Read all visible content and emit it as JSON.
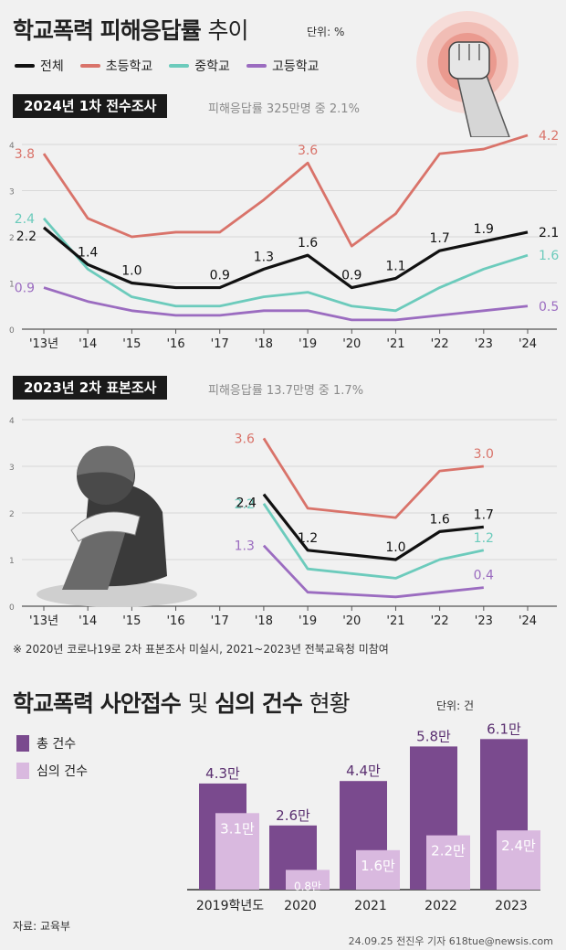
{
  "header": {
    "title_bold": "학교폭력 피해응답률",
    "title_light": "추이",
    "unit": "단위: %"
  },
  "legend": [
    {
      "name": "전체",
      "color": "#111111"
    },
    {
      "name": "초등학교",
      "color": "#d9736a"
    },
    {
      "name": "중학교",
      "color": "#6ccbbc"
    },
    {
      "name": "고등학교",
      "color": "#9b6cc0"
    }
  ],
  "survey1": {
    "band": "2024년 1차 전수조사",
    "note": "피해응답률 325만명 중 2.1%"
  },
  "survey2": {
    "band": "2023년 2차 표본조사",
    "note": "피해응답률 13.7만명 중 1.7%"
  },
  "footnote": "※ 2020년 코로나19로 2차 표본조사 미실시, 2021~2023년 전북교육청 미참여",
  "section2": {
    "title_bold": "학교폭력 사안접수",
    "title_mid": "및",
    "title_bold2": "심의 건수",
    "title_light": "현황",
    "unit": "단위: 건"
  },
  "bar_legend": [
    {
      "name": "총 건수",
      "color": "#7a4a8e"
    },
    {
      "name": "심의 건수",
      "color": "#d9b9df"
    }
  ],
  "source": "자료: 교육부",
  "byline": "24.09.25 전진우 기자 618tue@newsis.com",
  "chart_data": [
    {
      "type": "line",
      "x": [
        "'13년",
        "'14",
        "'15",
        "'16",
        "'17",
        "'18",
        "'19",
        "'20",
        "'21",
        "'22",
        "'23",
        "'24"
      ],
      "ylim": [
        0,
        4
      ],
      "yticks": [
        "0",
        "1",
        "2",
        "3",
        "4"
      ],
      "grid": true,
      "series": [
        {
          "name": "초등학교",
          "color": "#d9736a",
          "values": [
            3.8,
            2.4,
            2.0,
            2.1,
            2.1,
            2.8,
            3.6,
            1.8,
            2.5,
            3.8,
            3.9,
            4.2
          ],
          "labels": {
            "0": "3.8",
            "6": "3.6",
            "11": "4.2"
          }
        },
        {
          "name": "중학교",
          "color": "#6ccbbc",
          "values": [
            2.4,
            1.3,
            0.7,
            0.5,
            0.5,
            0.7,
            0.8,
            0.5,
            0.4,
            0.9,
            1.3,
            1.6
          ],
          "labels": {
            "0": "2.4",
            "11": "1.6"
          }
        },
        {
          "name": "고등학교",
          "color": "#9b6cc0",
          "values": [
            0.9,
            0.6,
            0.4,
            0.3,
            0.3,
            0.4,
            0.4,
            0.2,
            0.2,
            0.3,
            0.4,
            0.5
          ],
          "labels": {
            "0": "0.9",
            "11": "0.5"
          }
        },
        {
          "name": "전체",
          "color": "#111111",
          "values": [
            2.2,
            1.4,
            1.0,
            0.9,
            0.9,
            1.3,
            1.6,
            0.9,
            1.1,
            1.7,
            1.9,
            2.1
          ],
          "labels": {
            "0": "2.2",
            "1": "1.4",
            "2": "1.0",
            "4": "0.9",
            "5": "1.3",
            "6": "1.6",
            "7": "0.9",
            "8": "1.1",
            "9": "1.7",
            "10": "1.9",
            "11": "2.1"
          }
        }
      ]
    },
    {
      "type": "line",
      "x": [
        "'13년",
        "'14",
        "'15",
        "'16",
        "'17",
        "'18",
        "'19",
        "'20",
        "'21",
        "'22",
        "'23",
        "'24"
      ],
      "ylim": [
        0,
        4
      ],
      "yticks": [
        "0",
        "1",
        "2",
        "3",
        "4"
      ],
      "grid": true,
      "series": [
        {
          "name": "초등학교",
          "color": "#d9736a",
          "values": [
            null,
            null,
            null,
            null,
            null,
            3.6,
            2.1,
            2.0,
            1.9,
            2.9,
            3.0,
            null
          ],
          "labels": {
            "5": "3.6",
            "10": "3.0"
          }
        },
        {
          "name": "중학교",
          "color": "#6ccbbc",
          "values": [
            null,
            null,
            null,
            null,
            null,
            2.2,
            0.8,
            0.7,
            0.6,
            1.0,
            1.2,
            null
          ],
          "labels": {
            "5": "2.2",
            "10": "1.2"
          }
        },
        {
          "name": "고등학교",
          "color": "#9b6cc0",
          "values": [
            null,
            null,
            null,
            null,
            null,
            1.3,
            0.3,
            0.25,
            0.2,
            0.3,
            0.4,
            null
          ],
          "labels": {
            "5": "1.3",
            "10": "0.4"
          }
        },
        {
          "name": "전체",
          "color": "#111111",
          "values": [
            null,
            null,
            null,
            null,
            null,
            2.4,
            1.2,
            1.1,
            1.0,
            1.6,
            1.7,
            null
          ],
          "labels": {
            "5": "2.4",
            "6": "1.2",
            "8": "1.0",
            "9": "1.6",
            "10": "1.7"
          }
        }
      ]
    },
    {
      "type": "bar",
      "categories": [
        "2019학년도",
        "2020",
        "2021",
        "2022",
        "2023"
      ],
      "series": [
        {
          "name": "총 건수",
          "color": "#7a4a8e",
          "values": [
            4.3,
            2.6,
            4.4,
            5.8,
            6.1
          ],
          "labels": [
            "4.3만",
            "2.6만",
            "4.4만",
            "5.8만",
            "6.1만"
          ]
        },
        {
          "name": "심의 건수",
          "color": "#d9b9df",
          "values": [
            3.1,
            0.8,
            1.6,
            2.2,
            2.4
          ],
          "labels": [
            "3.1만",
            "0.8만",
            "1.6만",
            "2.2만",
            "2.4만"
          ]
        }
      ]
    }
  ]
}
